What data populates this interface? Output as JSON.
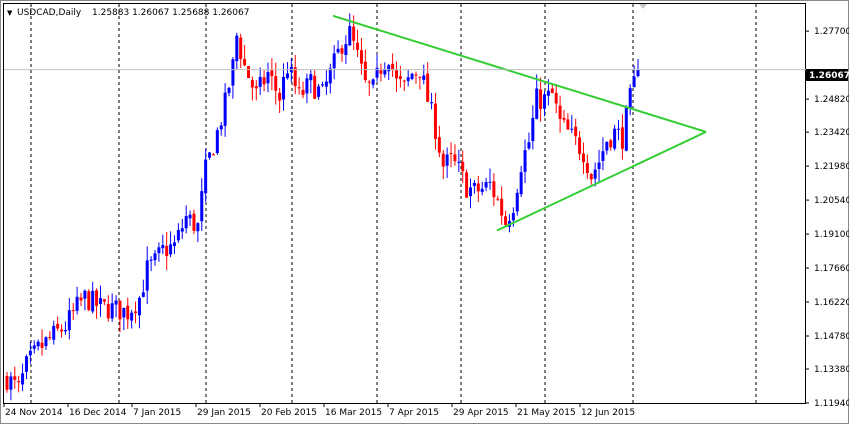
{
  "header": {
    "symbol_label": "USDCAD,Daily",
    "ohlc_text": "1.25883 1.26067 1.25688 1.26067",
    "dropdown_glyph": "▼"
  },
  "colors": {
    "background": "#ffffff",
    "frame": "#000000",
    "grid": "#000000",
    "bull": "#0000ff",
    "bear": "#ff0000",
    "trendline": "#32cd32",
    "price_line": "#c0c0c0",
    "price_box": "#000000"
  },
  "chart_data": {
    "type": "candlestick",
    "symbol": "USDCAD",
    "timeframe": "Daily",
    "last_price": "1.26067",
    "y_ticks": [
      "1.27700",
      "1.24820",
      "1.23420",
      "1.21980",
      "1.20540",
      "1.19100",
      "1.17660",
      "1.16220",
      "1.14780",
      "1.13380",
      "1.11940"
    ],
    "x_ticks": [
      "24 Nov 2014",
      "16 Dec 2014",
      "7 Jan 2015",
      "29 Jan 2015",
      "20 Feb 2015",
      "16 Mar 2015",
      "7 Apr 2015",
      "29 Apr 2015",
      "21 May 2015",
      "12 Jun 2015"
    ],
    "ylim": [
      1.1194,
      1.2885
    ],
    "candle_count": 150,
    "grid": "vertical dashed lines at each date label",
    "series_anchors": [
      [
        0,
        1.13
      ],
      [
        3,
        1.125
      ],
      [
        5,
        1.135
      ],
      [
        8,
        1.142
      ],
      [
        12,
        1.148
      ],
      [
        15,
        1.152
      ],
      [
        18,
        1.16
      ],
      [
        20,
        1.164
      ],
      [
        24,
        1.16
      ],
      [
        28,
        1.159
      ],
      [
        31,
        1.158
      ],
      [
        34,
        1.164
      ],
      [
        36,
        1.176
      ],
      [
        38,
        1.179
      ],
      [
        40,
        1.184
      ],
      [
        43,
        1.186
      ],
      [
        46,
        1.198
      ],
      [
        49,
        1.194
      ],
      [
        51,
        1.218
      ],
      [
        54,
        1.234
      ],
      [
        56,
        1.246
      ],
      [
        58,
        1.262
      ],
      [
        59,
        1.275
      ],
      [
        61,
        1.262
      ],
      [
        64,
        1.25
      ],
      [
        67,
        1.259
      ],
      [
        70,
        1.249
      ],
      [
        72,
        1.262
      ],
      [
        75,
        1.249
      ],
      [
        78,
        1.255
      ],
      [
        81,
        1.25
      ],
      [
        84,
        1.263
      ],
      [
        86,
        1.272
      ],
      [
        88,
        1.276
      ],
      [
        90,
        1.266
      ],
      [
        92,
        1.254
      ],
      [
        94,
        1.252
      ],
      [
        96,
        1.262
      ],
      [
        98,
        1.267
      ],
      [
        100,
        1.255
      ],
      [
        102,
        1.253
      ],
      [
        104,
        1.259
      ],
      [
        106,
        1.261
      ],
      [
        108,
        1.248
      ],
      [
        110,
        1.236
      ],
      [
        112,
        1.22
      ],
      [
        114,
        1.222
      ],
      [
        116,
        1.218
      ],
      [
        118,
        1.211
      ],
      [
        120,
        1.209
      ],
      [
        122,
        1.21
      ],
      [
        124,
        1.212
      ],
      [
        126,
        1.205
      ],
      [
        128,
        1.196
      ],
      [
        130,
        1.204
      ],
      [
        132,
        1.221
      ],
      [
        134,
        1.23
      ],
      [
        136,
        1.248
      ],
      [
        138,
        1.248
      ],
      [
        140,
        1.25
      ],
      [
        142,
        1.238
      ],
      [
        144,
        1.234
      ],
      [
        146,
        1.23
      ],
      [
        148,
        1.226
      ],
      [
        150,
        1.216
      ],
      [
        152,
        1.222
      ],
      [
        154,
        1.231
      ],
      [
        156,
        1.234
      ],
      [
        158,
        1.232
      ],
      [
        160,
        1.248
      ],
      [
        162,
        1.2607
      ]
    ],
    "trendlines": [
      {
        "name": "upper",
        "from": {
          "x": "16 Mar 2015",
          "y": 1.2835
        },
        "to": {
          "x": "apex",
          "y": 1.2343
        }
      },
      {
        "name": "lower",
        "from": {
          "x": "29 Apr 2015",
          "y": 1.1925
        },
        "to": {
          "x": "apex",
          "y": 1.2343
        }
      }
    ]
  }
}
